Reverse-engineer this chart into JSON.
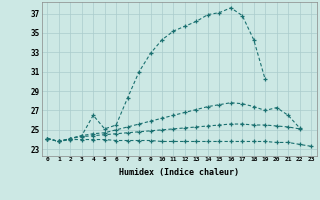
{
  "xlabel": "Humidex (Indice chaleur)",
  "bg_color": "#cce8e4",
  "grid_color": "#aacccc",
  "line_color": "#1a7070",
  "x_ticks": [
    0,
    1,
    2,
    3,
    4,
    5,
    6,
    7,
    8,
    9,
    10,
    11,
    12,
    13,
    14,
    15,
    16,
    17,
    18,
    19,
    20,
    21,
    22,
    23
  ],
  "y_ticks": [
    23,
    25,
    27,
    29,
    31,
    33,
    35,
    37
  ],
  "xlim": [
    -0.5,
    23.5
  ],
  "ylim": [
    22.3,
    38.2
  ],
  "series": [
    {
      "x": [
        0,
        1,
        2,
        3,
        4,
        5,
        6,
        7,
        8,
        9,
        10,
        11,
        12,
        13,
        14,
        15,
        16,
        17,
        18,
        19
      ],
      "y": [
        24.1,
        23.8,
        24.1,
        24.4,
        26.5,
        25.1,
        25.5,
        28.3,
        31.0,
        32.9,
        34.3,
        35.2,
        35.7,
        36.2,
        36.9,
        37.1,
        37.6,
        36.8,
        34.3,
        30.2
      ]
    },
    {
      "x": [
        0,
        1,
        2,
        3,
        4,
        5,
        6,
        7,
        8,
        9,
        10,
        11,
        12,
        13,
        14,
        15,
        16,
        17,
        18,
        19,
        20,
        21,
        22
      ],
      "y": [
        24.1,
        23.8,
        24.1,
        24.4,
        24.6,
        24.7,
        25.0,
        25.3,
        25.6,
        25.9,
        26.2,
        26.5,
        26.8,
        27.1,
        27.4,
        27.6,
        27.8,
        27.7,
        27.4,
        27.0,
        27.3,
        26.5,
        25.2
      ]
    },
    {
      "x": [
        0,
        1,
        2,
        3,
        4,
        5,
        6,
        7,
        8,
        9,
        10,
        11,
        12,
        13,
        14,
        15,
        16,
        17,
        18,
        19,
        20,
        21,
        22
      ],
      "y": [
        24.1,
        23.8,
        24.1,
        24.3,
        24.4,
        24.5,
        24.6,
        24.7,
        24.8,
        24.9,
        25.0,
        25.1,
        25.2,
        25.3,
        25.4,
        25.5,
        25.6,
        25.6,
        25.5,
        25.5,
        25.4,
        25.3,
        25.1
      ]
    },
    {
      "x": [
        0,
        1,
        2,
        3,
        4,
        5,
        6,
        7,
        8,
        9,
        10,
        11,
        12,
        13,
        14,
        15,
        16,
        17,
        18,
        19,
        20,
        21,
        22,
        23
      ],
      "y": [
        24.1,
        23.8,
        24.0,
        24.0,
        24.0,
        24.0,
        23.9,
        23.9,
        23.9,
        23.9,
        23.8,
        23.8,
        23.8,
        23.8,
        23.8,
        23.8,
        23.8,
        23.8,
        23.8,
        23.8,
        23.7,
        23.7,
        23.5,
        23.3
      ]
    }
  ]
}
